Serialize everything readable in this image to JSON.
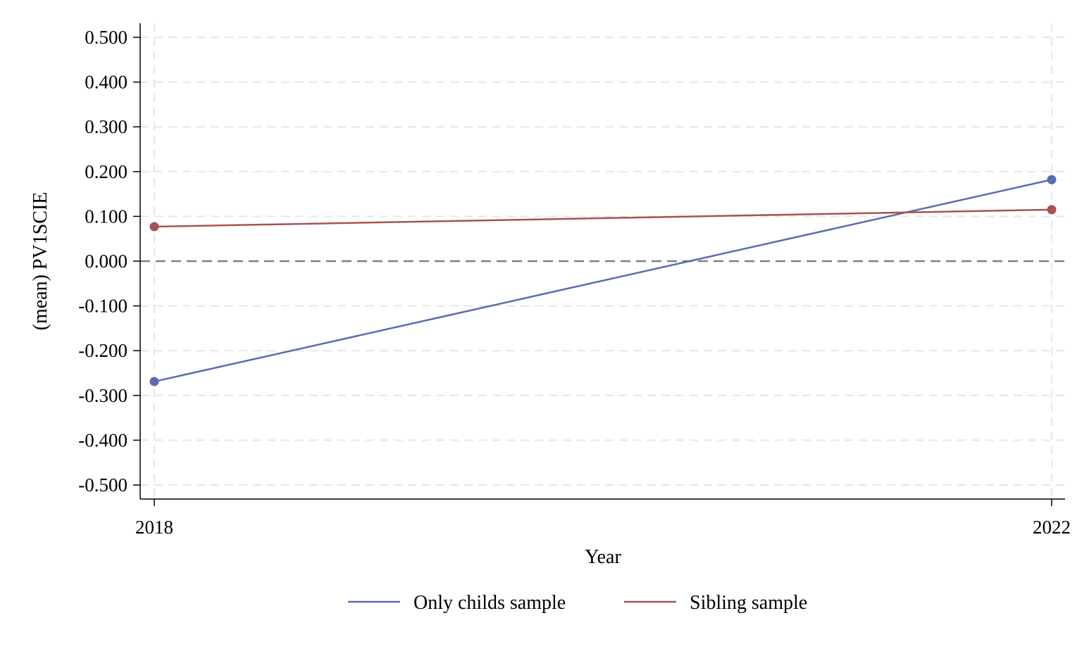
{
  "chart_data": {
    "type": "line",
    "title": "",
    "xlabel": "Year",
    "ylabel": "(mean) PV1SCIE",
    "x": [
      2018,
      2022
    ],
    "xlim": [
      2018,
      2022
    ],
    "ylim": [
      -0.5,
      0.5
    ],
    "x_ticks": [
      "2018",
      "2022"
    ],
    "y_ticks": [
      {
        "value": 0.5,
        "label": "0.500"
      },
      {
        "value": 0.4,
        "label": "0.400"
      },
      {
        "value": 0.3,
        "label": "0.300"
      },
      {
        "value": 0.2,
        "label": "0.200"
      },
      {
        "value": 0.1,
        "label": "0.100"
      },
      {
        "value": 0.0,
        "label": "0.000"
      },
      {
        "value": -0.1,
        "label": "-0.100"
      },
      {
        "value": -0.2,
        "label": "-0.200"
      },
      {
        "value": -0.3,
        "label": "-0.300"
      },
      {
        "value": -0.4,
        "label": "-0.400"
      },
      {
        "value": -0.5,
        "label": "-0.500"
      }
    ],
    "reference_line": 0,
    "grid": true,
    "legend_position": "bottom",
    "series": [
      {
        "name": "Only childs sample",
        "color": "#5a6cb0",
        "values": [
          -0.269,
          0.182
        ]
      },
      {
        "name": "Sibling sample",
        "color": "#a65353",
        "values": [
          0.077,
          0.115
        ]
      }
    ]
  }
}
